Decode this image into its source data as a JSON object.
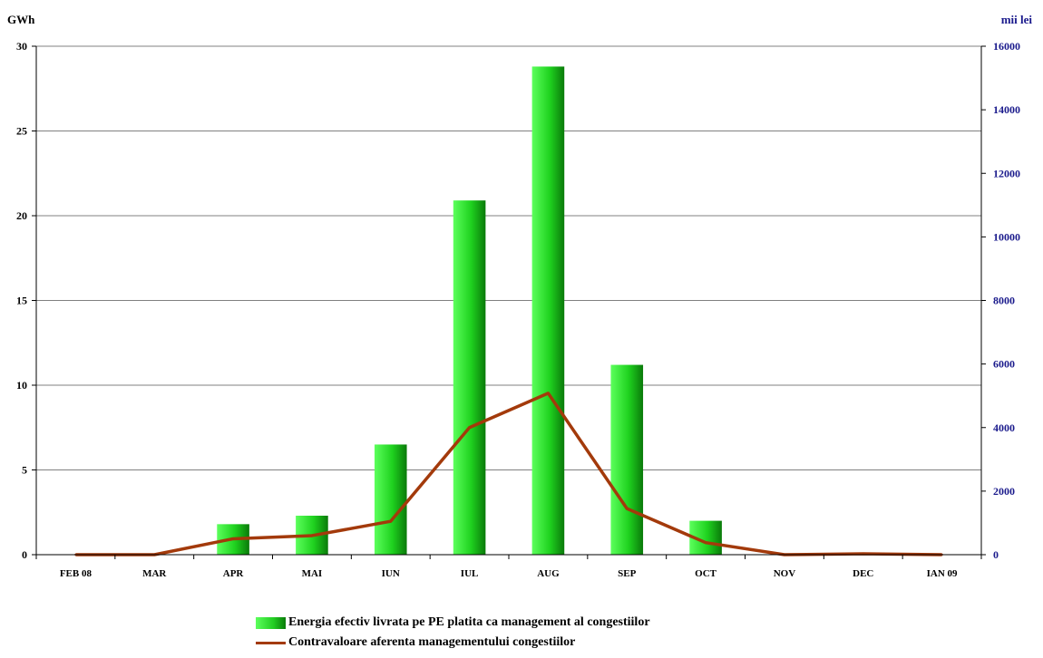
{
  "chart_data": {
    "type": "bar",
    "categories": [
      "FEB 08",
      "MAR",
      "APR",
      "MAI",
      "IUN",
      "IUL",
      "AUG",
      "SEP",
      "OCT",
      "NOV",
      "DEC",
      "IAN 09"
    ],
    "series": [
      {
        "name": "Energia efectiv livrata pe PE platita ca management al congestiilor",
        "type": "bar",
        "axis": "left",
        "color": "#22cc22",
        "values": [
          0,
          0,
          1.8,
          2.3,
          6.5,
          20.9,
          28.8,
          11.2,
          2.0,
          0,
          0,
          0
        ]
      },
      {
        "name": "Contravaloare aferenta managementului congestiilor",
        "type": "line",
        "axis": "right",
        "color": "#a33a0b",
        "values": [
          0,
          0,
          500,
          600,
          1050,
          4000,
          5080,
          1450,
          380,
          0,
          30,
          0
        ]
      }
    ],
    "yleft": {
      "label": "GWh",
      "min": 0,
      "max": 30,
      "ticks": [
        "0",
        "5",
        "10",
        "15",
        "20",
        "25",
        "30"
      ]
    },
    "yright": {
      "label": "mii lei",
      "min": 0,
      "max": 16000,
      "ticks": [
        "0",
        "2000",
        "4000",
        "6000",
        "8000",
        "10000",
        "12000",
        "14000",
        "16000"
      ]
    },
    "grid": true,
    "legend_position": "bottom-center"
  }
}
